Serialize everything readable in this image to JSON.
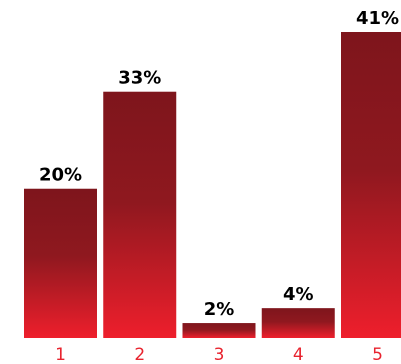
{
  "chart_data": {
    "type": "bar",
    "categories": [
      "1",
      "2",
      "3",
      "4",
      "5"
    ],
    "values": [
      20,
      33,
      2,
      4,
      41
    ],
    "value_labels": [
      "20%",
      "33%",
      "2%",
      "4%",
      "41%"
    ],
    "ylim": [
      0,
      41
    ],
    "grid": false,
    "legend": "none",
    "colors": {
      "bar_top": "#7e151c",
      "bar_bottom": "#ee1f2c",
      "tick_label": "#e8232e",
      "value_label": "#000000"
    }
  }
}
